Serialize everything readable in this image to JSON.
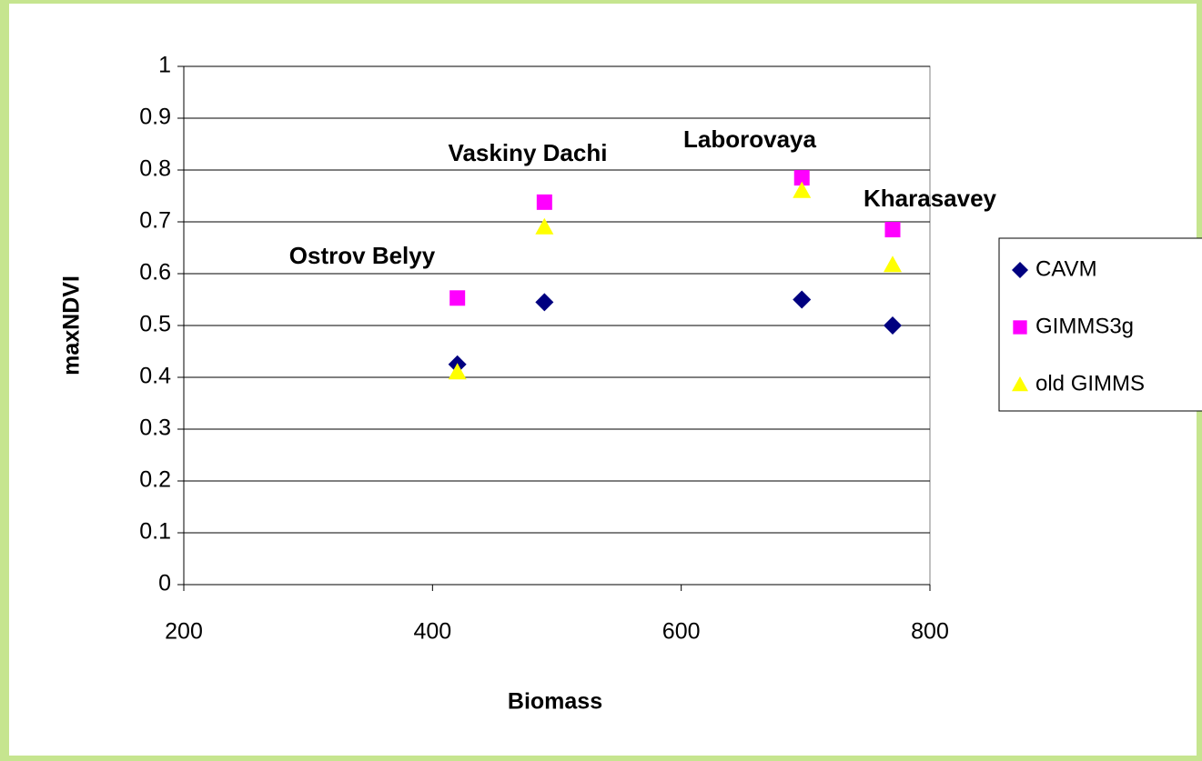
{
  "chart_data": {
    "type": "scatter",
    "x_label": "Biomass",
    "y_label": "maxNDVI",
    "xlim": [
      200,
      800
    ],
    "xticks": [
      200,
      400,
      600,
      800
    ],
    "ylim": [
      0,
      1
    ],
    "yticks": [
      0,
      0.1,
      0.2,
      0.3,
      0.4,
      0.5,
      0.6,
      0.7,
      0.8,
      0.9,
      1
    ],
    "grid": true,
    "legend": "right",
    "series": [
      {
        "name": "CAVM",
        "color": "#000080",
        "marker": "diamond",
        "x": [
          420,
          490,
          697,
          770
        ],
        "values": [
          0.425,
          0.545,
          0.55,
          0.5
        ]
      },
      {
        "name": "GIMMS3g",
        "color": "#ff00ff",
        "marker": "square",
        "x": [
          420,
          490,
          697,
          770
        ],
        "values": [
          0.553,
          0.738,
          0.785,
          0.685
        ]
      },
      {
        "name": "old GIMMS",
        "color": "#ffff00",
        "marker": "triangle",
        "x": [
          420,
          490,
          697,
          770
        ],
        "values": [
          0.41,
          0.69,
          0.76,
          0.617
        ]
      }
    ],
    "annotations": [
      "Ostrov Belyy",
      "Vaskiny Dachi",
      "Laborovaya",
      "Kharasavey"
    ]
  }
}
